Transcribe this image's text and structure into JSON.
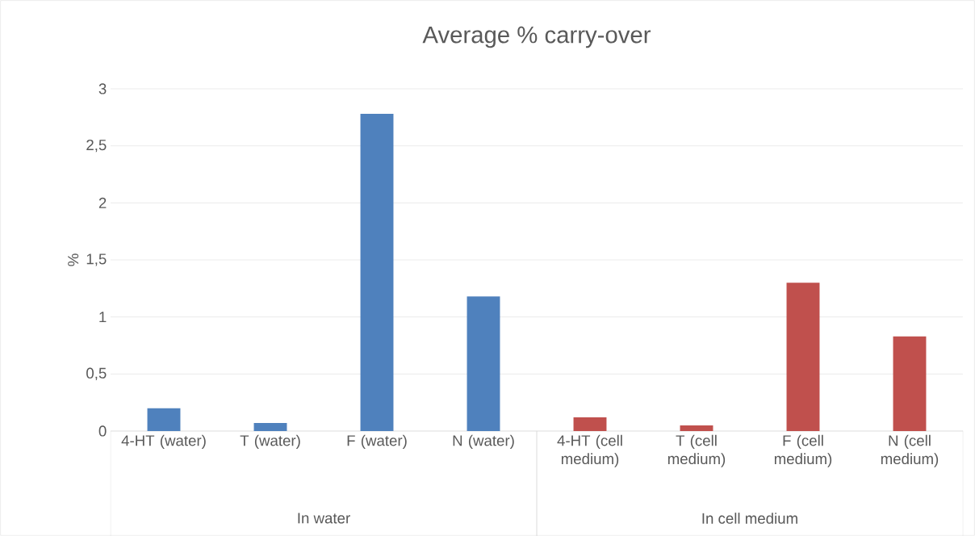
{
  "chart_data": {
    "type": "bar",
    "title": "Average % carry-over",
    "ylabel": "%",
    "categories": [
      "4-HT (water)",
      "T (water)",
      "F (water)",
      "N (water)",
      "4-HT (cell medium)",
      "T (cell medium)",
      "F (cell medium)",
      "N (cell medium)"
    ],
    "values": [
      0.2,
      0.07,
      2.78,
      1.18,
      0.12,
      0.05,
      1.3,
      0.83
    ],
    "colors": [
      "#4f81bd",
      "#4f81bd",
      "#4f81bd",
      "#4f81bd",
      "#c0504d",
      "#c0504d",
      "#c0504d",
      "#c0504d"
    ],
    "annotations": [
      "In water",
      "In cell medium"
    ],
    "ylim": [
      0,
      3
    ],
    "yticks": [
      0,
      {
        "value": 0.5,
        "label": "0,5"
      },
      1,
      {
        "value": 1.5,
        "label": "1,5"
      },
      2,
      {
        "value": 2.5,
        "label": "2,5"
      },
      3
    ],
    "grid": "y",
    "legend": false
  }
}
